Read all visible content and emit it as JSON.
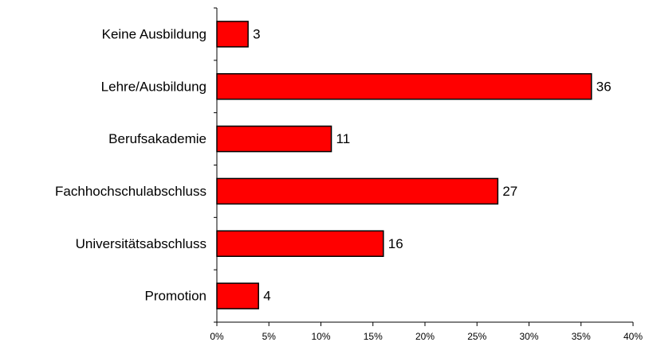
{
  "chart_data": {
    "type": "bar",
    "orientation": "horizontal",
    "categories": [
      "Keine Ausbildung",
      "Lehre/Ausbildung",
      "Berufsakademie",
      "Fachhochschulabschluss",
      "Universitätsabschluss",
      "Promotion"
    ],
    "values": [
      3,
      36,
      11,
      27,
      16,
      4
    ],
    "data_labels": [
      "3",
      "36",
      "11",
      "27",
      "16",
      "4"
    ],
    "x_ticks": [
      "0%",
      "5%",
      "10%",
      "15%",
      "20%",
      "25%",
      "30%",
      "35%",
      "40%"
    ],
    "xlim": [
      0,
      40
    ],
    "grid": false,
    "legend": "none",
    "bar_color": "#ff0000",
    "title": "",
    "xlabel": "",
    "ylabel": ""
  }
}
